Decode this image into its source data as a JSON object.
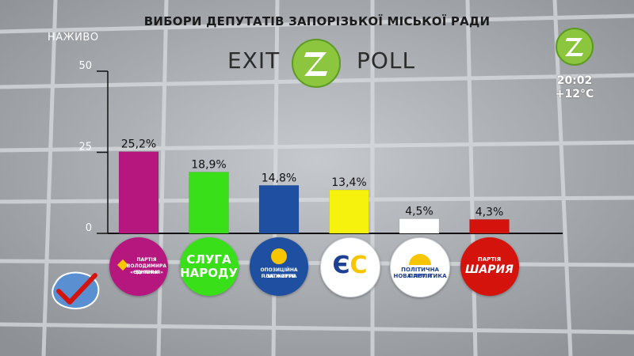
{
  "header": {
    "title": "ВИБОРИ ДЕПУТАТІВ ЗАПОРІЗЬКОЇ МІСЬКОЇ РАДИ",
    "live_label": "НАЖИВО",
    "exit_word": "EXIT",
    "poll_word": "POLL"
  },
  "clock": {
    "time": "20:02",
    "temperature": "+12°C"
  },
  "colors": {
    "accent_green": "#8cc63f",
    "dark_green": "#3b8a20",
    "background": "#a9adb2"
  },
  "chart_data": {
    "type": "bar",
    "title": "",
    "xlabel": "",
    "ylabel": "",
    "ylim": [
      0,
      50
    ],
    "yticks": [
      0,
      25,
      50
    ],
    "grid": false,
    "categories": [
      "ПАРТІЯ ВОЛОДИМИРА БУРЯКА «ЄДНАННЯ»",
      "СЛУГА НАРОДУ",
      "ОПОЗИЦІЙНА ПЛАТФОРМА – ЗА ЖИТТЯ",
      "ЄС",
      "ПОЛІТИЧНА ПАРТІЯ НОВА ПОЛІТИКА",
      "ПАРТІЯ ШАРІЯ"
    ],
    "values": [
      25.2,
      18.9,
      14.8,
      13.4,
      4.5,
      4.3
    ],
    "value_labels": [
      "25,2%",
      "18,9%",
      "14,8%",
      "13,4%",
      "4,5%",
      "4,3%"
    ],
    "bar_colors": [
      "#b5177f",
      "#39e019",
      "#1f4fa0",
      "#f7f20d",
      "#ffffff",
      "#d4140c"
    ]
  },
  "logos": [
    {
      "icon": "yednannya-logo-icon",
      "lines": [
        "ПАРТІЯ",
        "ВОЛОДИМИРА БУРЯКА",
        "«ЄДНАННЯ»"
      ],
      "bg": "#b5177f",
      "fg": "#ffffff"
    },
    {
      "icon": "sluha-narodu-logo-icon",
      "lines": [
        "СЛУГА",
        "НАРОДУ"
      ],
      "bg": "#39e019",
      "fg": "#ffffff"
    },
    {
      "icon": "opzzh-logo-icon",
      "lines": [
        "ОПОЗИЦІЙНА ПЛАТФОРМА",
        "– ЗА ЖИТТЯ"
      ],
      "bg": "#1f4fa0",
      "fg": "#ffffff"
    },
    {
      "icon": "yes-logo-icon",
      "lines": [
        "ЄС"
      ],
      "bg": "#ffffff",
      "fg": "#1d3f94"
    },
    {
      "icon": "nova-polityka-logo-icon",
      "lines": [
        "ПОЛІТИЧНА ПАРТІЯ",
        "НОВА ПОЛІТИКА"
      ],
      "bg": "#ffffff",
      "fg": "#1d3f94"
    },
    {
      "icon": "shariy-logo-icon",
      "lines": [
        "ПАРТІЯ",
        "ШАРИЯ"
      ],
      "bg": "#d4140c",
      "fg": "#ffffff"
    }
  ]
}
